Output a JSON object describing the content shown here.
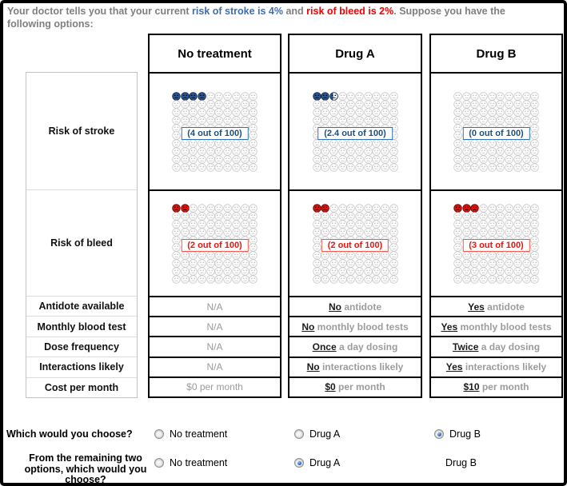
{
  "intro": {
    "pre": "Your doctor tells you that your current ",
    "stroke_text": "risk of stroke is 4%",
    "mid": " and ",
    "bleed_text": "risk of bleed is 2%",
    "post": ". Suppose you have the following options:"
  },
  "row_labels": [
    "Risk of stroke",
    "Risk of bleed",
    "Antidote available",
    "Monthly blood test",
    "Dose frequency",
    "Interactions likely",
    "Cost per month"
  ],
  "columns": [
    {
      "header": "No treatment",
      "stroke": {
        "label": "(4 out of 100)",
        "full": 4,
        "partial": 0,
        "total": 100
      },
      "bleed": {
        "label": "(2 out of 100)",
        "full": 2,
        "partial": 0,
        "total": 100
      },
      "attrs": [
        {
          "em": "",
          "rest": "N/A"
        },
        {
          "em": "",
          "rest": "N/A"
        },
        {
          "em": "",
          "rest": "N/A"
        },
        {
          "em": "",
          "rest": "N/A"
        },
        {
          "em": "",
          "rest": "$0 per month"
        }
      ]
    },
    {
      "header": "Drug A",
      "stroke": {
        "label": "(2.4 out of 100)",
        "full": 2,
        "partial": 0.4,
        "total": 100
      },
      "bleed": {
        "label": "(2 out of 100)",
        "full": 2,
        "partial": 0,
        "total": 100
      },
      "attrs": [
        {
          "em": "No",
          "rest": " antidote"
        },
        {
          "em": "No",
          "rest": " monthly blood tests"
        },
        {
          "em": "Once",
          "rest": " a day dosing"
        },
        {
          "em": "No",
          "rest": " interactions likely"
        },
        {
          "em": "$0",
          "rest": " per month"
        }
      ]
    },
    {
      "header": "Drug B",
      "stroke": {
        "label": "(0 out of 100)",
        "full": 0,
        "partial": 0,
        "total": 100
      },
      "bleed": {
        "label": "(3 out of 100)",
        "full": 3,
        "partial": 0,
        "total": 100
      },
      "attrs": [
        {
          "em": "Yes",
          "rest": " antidote"
        },
        {
          "em": "Yes",
          "rest": " monthly blood tests"
        },
        {
          "em": "Twice",
          "rest": " a day dosing"
        },
        {
          "em": "Yes",
          "rest": " interactions likely"
        },
        {
          "em": "$10",
          "rest": " per month"
        }
      ]
    }
  ],
  "questions": [
    {
      "label": "Which would you choose?",
      "options": [
        {
          "text": "No treatment",
          "selected": false,
          "radio": true
        },
        {
          "text": "Drug A",
          "selected": false,
          "radio": true
        },
        {
          "text": "Drug B",
          "selected": true,
          "radio": true
        }
      ]
    },
    {
      "label": "From the remaining two\noptions, which would you\nchoose?",
      "options": [
        {
          "text": "No treatment",
          "selected": false,
          "radio": true
        },
        {
          "text": "Drug A",
          "selected": true,
          "radio": true
        },
        {
          "text": "Drug B",
          "selected": false,
          "radio": false
        }
      ]
    }
  ],
  "icons": {
    "stroke_face": "sad-face-icon",
    "bleed_face": "sad-face-icon",
    "neutral_face": "neutral-face-icon"
  },
  "colors": {
    "stroke_fill": "#2a5794",
    "stroke_outline": "#10243e",
    "bleed_fill": "#e3120b",
    "bleed_outline": "#5e0000",
    "gray_outline": "#c9c9c9",
    "gray_features": "#c0c0c0",
    "label_blue_text": "#1f4e79",
    "label_blue_border": "#2e74b5",
    "label_red_text": "#e8150d",
    "label_red_border": "#f05a50",
    "intro_gray": "#7f7f7f",
    "intro_blue": "#3e6db5",
    "intro_red": "#f40000"
  }
}
